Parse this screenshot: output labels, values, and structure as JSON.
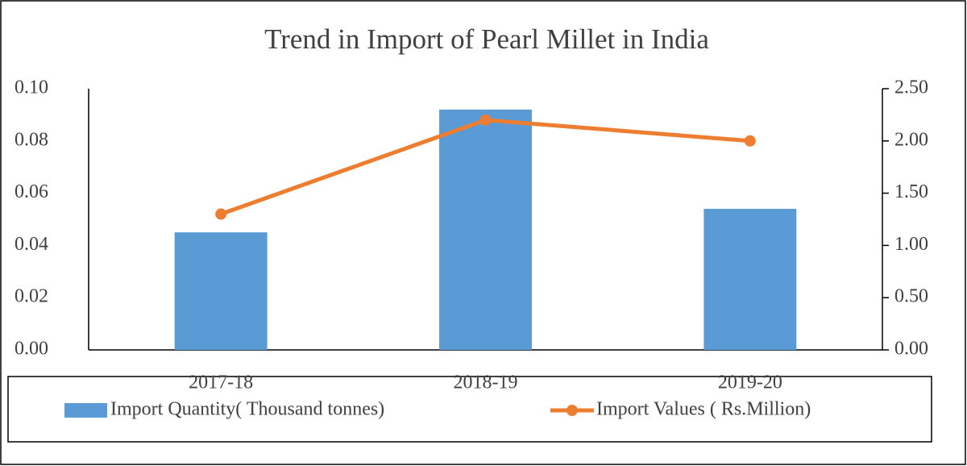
{
  "chart_data": {
    "type": "bar",
    "title": "Trend in Import of Pearl Millet in India",
    "categories": [
      "2017-18",
      "2018-19",
      "2019-20"
    ],
    "series": [
      {
        "name": "Import Quantity( Thousand  tonnes)",
        "type": "bar",
        "color": "#5b9bd5",
        "values": [
          0.045,
          0.092,
          0.054
        ]
      },
      {
        "name": "Import Values ( Rs.Million)",
        "type": "line",
        "color": "#ed7d31",
        "axis": "y2",
        "values": [
          1.3,
          2.2,
          2.0
        ]
      }
    ],
    "ylim": [
      0,
      0.1
    ],
    "yticks": [
      {
        "value": 0,
        "label": "0.00"
      },
      {
        "value": 0.02,
        "label": "0.02"
      },
      {
        "value": 0.04,
        "label": "0.04"
      },
      {
        "value": 0.06,
        "label": "0.06"
      },
      {
        "value": 0.08,
        "label": "0.08"
      },
      {
        "value": 0.1,
        "label": "0.10"
      }
    ],
    "y2lim": [
      0,
      2.5
    ],
    "y2ticks": [
      {
        "value": 0,
        "label": "0.00"
      },
      {
        "value": 0.5,
        "label": "0.50"
      },
      {
        "value": 1,
        "label": "1.00"
      },
      {
        "value": 1.5,
        "label": "1.50"
      },
      {
        "value": 2,
        "label": "2.00"
      },
      {
        "value": 2.5,
        "label": "2.50"
      }
    ],
    "grid": false,
    "legend": "bottom"
  }
}
